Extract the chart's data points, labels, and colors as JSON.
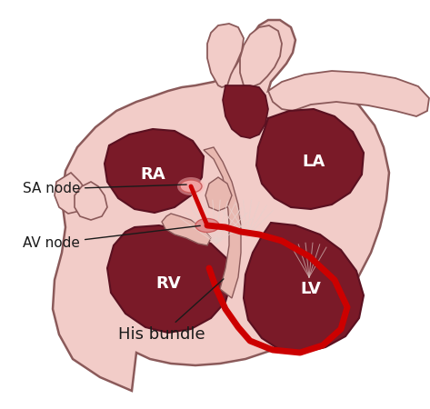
{
  "background_color": "#ffffff",
  "heart_outer_color": "#f2ccc8",
  "heart_outer_edge": "#8B5a5a",
  "chamber_fill": "#7a1a28",
  "chamber_edge": "#5a1020",
  "vessel_fill": "#f2ccc8",
  "vessel_edge": "#8B5a5a",
  "inner_wall_fill": "#e8b8b0",
  "conducting_red": "#cc0000",
  "SA_node_color": "#f0a0a0",
  "AV_node_color": "#e09090",
  "septum_fill": "#e0b0b0",
  "label_SA": "SA node",
  "label_AV": "AV node",
  "label_His": "His bundle",
  "label_RA": "RA",
  "label_LA": "LA",
  "label_RV": "RV",
  "label_LV": "LV",
  "label_color_dark": "#1a1a1a",
  "label_color_white": "#ffffff",
  "label_fontsize": 11,
  "chamber_label_fontsize": 13
}
